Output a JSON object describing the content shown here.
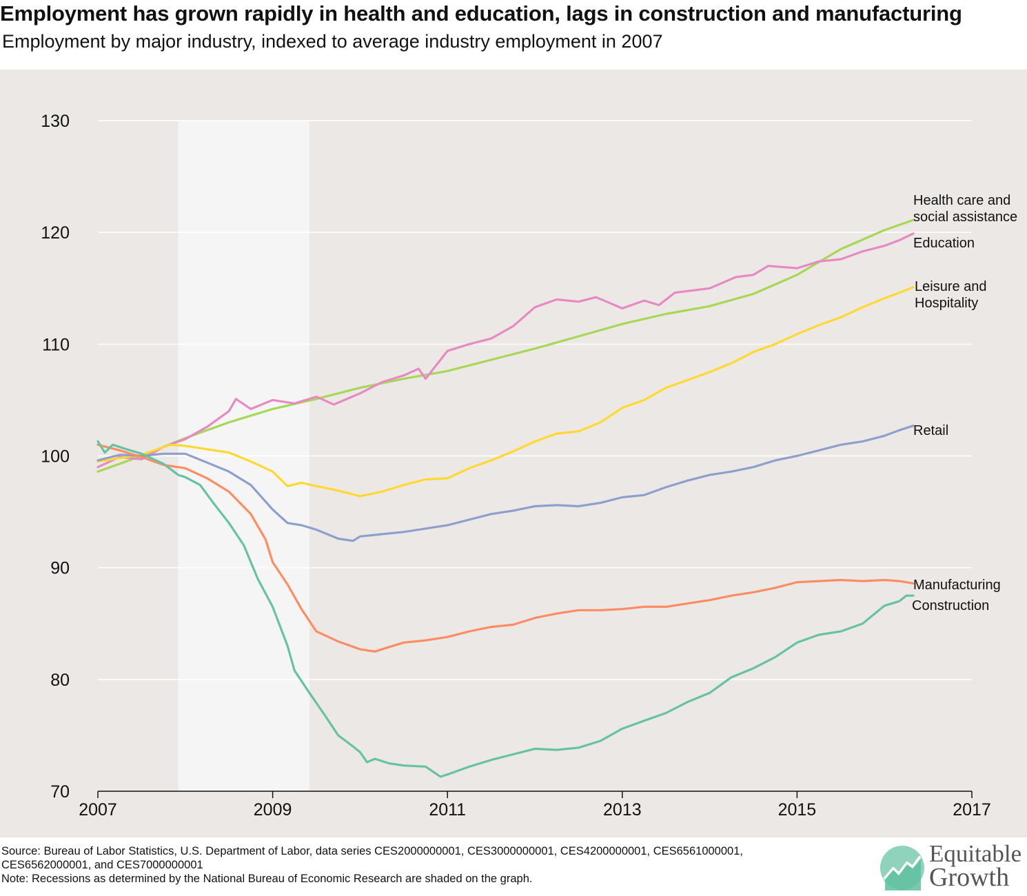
{
  "title": "Employment has grown rapidly in health and education, lags in construction and manufacturing",
  "subtitle": "Employment by major industry, indexed to average industry employment in 2007",
  "footer": {
    "source": "Source: Bureau of Labor Statistics, U.S. Department of Labor, data series CES2000000001, CES3000000001, CES4200000001, CES6561000001, CES6562000001, and CES7000000001",
    "note": "Note: Recessions as determined by the National Bureau of Economic Research are shaded on the graph."
  },
  "logo": {
    "line1": "Equitable",
    "line2": "Growth"
  },
  "colors": {
    "background": "#ece8e6",
    "recession": "#f5f5f5",
    "grid": "#ffffff",
    "health": "#a6d854",
    "education": "#e78ac3",
    "leisure": "#ffd92f",
    "retail": "#8da0cb",
    "manufacturing": "#fc8d62",
    "construction": "#66c2a5"
  },
  "chart_data": {
    "type": "line",
    "title": "Employment has grown rapidly in health and education, lags in construction and manufacturing",
    "subtitle": "Employment by major industry, indexed to average industry employment in 2007",
    "xlabel": "",
    "ylabel": "",
    "xlim": [
      2007,
      2017
    ],
    "ylim": [
      70,
      130
    ],
    "xticks": [
      "2007",
      "2009",
      "2011",
      "2013",
      "2015",
      "2017"
    ],
    "yticks": [
      "70",
      "80",
      "90",
      "100",
      "110",
      "120",
      "130"
    ],
    "grid": "horizontal",
    "legend": "labels at line ends",
    "recession": [
      2007.92,
      2009.42
    ],
    "series": [
      {
        "name": "Health care and\nsocial assistance",
        "color": "#a6d854",
        "points": [
          [
            2007.0,
            98.6
          ],
          [
            2007.5,
            100.0
          ],
          [
            2008.0,
            101.6
          ],
          [
            2008.5,
            103.0
          ],
          [
            2009.0,
            104.2
          ],
          [
            2009.5,
            105.1
          ],
          [
            2010.0,
            106.1
          ],
          [
            2010.5,
            106.9
          ],
          [
            2011.0,
            107.6
          ],
          [
            2011.5,
            108.6
          ],
          [
            2012.0,
            109.6
          ],
          [
            2012.5,
            110.7
          ],
          [
            2013.0,
            111.8
          ],
          [
            2013.5,
            112.7
          ],
          [
            2014.0,
            113.4
          ],
          [
            2014.5,
            114.5
          ],
          [
            2015.0,
            116.2
          ],
          [
            2015.5,
            118.5
          ],
          [
            2016.0,
            120.2
          ],
          [
            2016.33,
            121.1
          ]
        ]
      },
      {
        "name": "Education",
        "color": "#e78ac3",
        "points": [
          [
            2007.0,
            99.0
          ],
          [
            2007.25,
            99.9
          ],
          [
            2007.5,
            99.7
          ],
          [
            2007.75,
            100.8
          ],
          [
            2008.0,
            101.5
          ],
          [
            2008.25,
            102.6
          ],
          [
            2008.5,
            104.0
          ],
          [
            2008.58,
            105.1
          ],
          [
            2008.75,
            104.2
          ],
          [
            2009.0,
            105.0
          ],
          [
            2009.25,
            104.7
          ],
          [
            2009.5,
            105.3
          ],
          [
            2009.7,
            104.6
          ],
          [
            2010.0,
            105.6
          ],
          [
            2010.25,
            106.6
          ],
          [
            2010.5,
            107.2
          ],
          [
            2010.67,
            107.8
          ],
          [
            2010.75,
            106.9
          ],
          [
            2011.0,
            109.4
          ],
          [
            2011.25,
            110.0
          ],
          [
            2011.5,
            110.5
          ],
          [
            2011.75,
            111.6
          ],
          [
            2012.0,
            113.3
          ],
          [
            2012.25,
            114.0
          ],
          [
            2012.5,
            113.8
          ],
          [
            2012.7,
            114.2
          ],
          [
            2013.0,
            113.2
          ],
          [
            2013.25,
            113.9
          ],
          [
            2013.42,
            113.5
          ],
          [
            2013.6,
            114.6
          ],
          [
            2014.0,
            115.0
          ],
          [
            2014.3,
            116.0
          ],
          [
            2014.5,
            116.2
          ],
          [
            2014.67,
            117.0
          ],
          [
            2015.0,
            116.8
          ],
          [
            2015.25,
            117.4
          ],
          [
            2015.5,
            117.6
          ],
          [
            2015.75,
            118.3
          ],
          [
            2016.0,
            118.8
          ],
          [
            2016.17,
            119.3
          ],
          [
            2016.33,
            119.9
          ]
        ]
      },
      {
        "name": "Leisure and\nHospitality",
        "color": "#ffd92f",
        "points": [
          [
            2007.0,
            99.5
          ],
          [
            2007.5,
            100.1
          ],
          [
            2007.83,
            101.0
          ],
          [
            2008.0,
            100.9
          ],
          [
            2008.25,
            100.6
          ],
          [
            2008.5,
            100.3
          ],
          [
            2008.75,
            99.5
          ],
          [
            2009.0,
            98.6
          ],
          [
            2009.17,
            97.3
          ],
          [
            2009.33,
            97.6
          ],
          [
            2009.5,
            97.3
          ],
          [
            2009.75,
            96.9
          ],
          [
            2010.0,
            96.4
          ],
          [
            2010.25,
            96.8
          ],
          [
            2010.5,
            97.4
          ],
          [
            2010.75,
            97.9
          ],
          [
            2011.0,
            98.0
          ],
          [
            2011.25,
            98.9
          ],
          [
            2011.5,
            99.6
          ],
          [
            2011.75,
            100.4
          ],
          [
            2012.0,
            101.3
          ],
          [
            2012.25,
            102.0
          ],
          [
            2012.5,
            102.2
          ],
          [
            2012.75,
            103.0
          ],
          [
            2013.0,
            104.3
          ],
          [
            2013.25,
            105.0
          ],
          [
            2013.5,
            106.1
          ],
          [
            2013.75,
            106.8
          ],
          [
            2014.0,
            107.5
          ],
          [
            2014.25,
            108.3
          ],
          [
            2014.5,
            109.3
          ],
          [
            2014.75,
            110.0
          ],
          [
            2015.0,
            110.9
          ],
          [
            2015.25,
            111.7
          ],
          [
            2015.5,
            112.4
          ],
          [
            2015.75,
            113.3
          ],
          [
            2016.0,
            114.1
          ],
          [
            2016.17,
            114.6
          ],
          [
            2016.33,
            115.1
          ]
        ]
      },
      {
        "name": "Retail",
        "color": "#8da0cb",
        "points": [
          [
            2007.0,
            99.6
          ],
          [
            2007.25,
            100.1
          ],
          [
            2007.5,
            100.0
          ],
          [
            2007.75,
            100.2
          ],
          [
            2008.0,
            100.2
          ],
          [
            2008.25,
            99.4
          ],
          [
            2008.5,
            98.6
          ],
          [
            2008.75,
            97.4
          ],
          [
            2009.0,
            95.2
          ],
          [
            2009.17,
            94.0
          ],
          [
            2009.33,
            93.8
          ],
          [
            2009.5,
            93.4
          ],
          [
            2009.75,
            92.6
          ],
          [
            2009.92,
            92.4
          ],
          [
            2010.0,
            92.8
          ],
          [
            2010.25,
            93.0
          ],
          [
            2010.5,
            93.2
          ],
          [
            2010.75,
            93.5
          ],
          [
            2011.0,
            93.8
          ],
          [
            2011.25,
            94.3
          ],
          [
            2011.5,
            94.8
          ],
          [
            2011.75,
            95.1
          ],
          [
            2012.0,
            95.5
          ],
          [
            2012.25,
            95.6
          ],
          [
            2012.5,
            95.5
          ],
          [
            2012.75,
            95.8
          ],
          [
            2013.0,
            96.3
          ],
          [
            2013.25,
            96.5
          ],
          [
            2013.5,
            97.2
          ],
          [
            2013.75,
            97.8
          ],
          [
            2014.0,
            98.3
          ],
          [
            2014.25,
            98.6
          ],
          [
            2014.5,
            99.0
          ],
          [
            2014.75,
            99.6
          ],
          [
            2015.0,
            100.0
          ],
          [
            2015.25,
            100.5
          ],
          [
            2015.5,
            101.0
          ],
          [
            2015.75,
            101.3
          ],
          [
            2016.0,
            101.8
          ],
          [
            2016.17,
            102.3
          ],
          [
            2016.33,
            102.7
          ]
        ]
      },
      {
        "name": "Manufacturing",
        "color": "#fc8d62",
        "points": [
          [
            2007.0,
            101.0
          ],
          [
            2007.25,
            100.5
          ],
          [
            2007.5,
            99.9
          ],
          [
            2007.75,
            99.2
          ],
          [
            2008.0,
            98.9
          ],
          [
            2008.25,
            98.0
          ],
          [
            2008.5,
            96.8
          ],
          [
            2008.75,
            94.8
          ],
          [
            2008.92,
            92.5
          ],
          [
            2009.0,
            90.5
          ],
          [
            2009.17,
            88.5
          ],
          [
            2009.33,
            86.3
          ],
          [
            2009.5,
            84.3
          ],
          [
            2009.75,
            83.4
          ],
          [
            2010.0,
            82.7
          ],
          [
            2010.17,
            82.5
          ],
          [
            2010.33,
            82.9
          ],
          [
            2010.5,
            83.3
          ],
          [
            2010.75,
            83.5
          ],
          [
            2011.0,
            83.8
          ],
          [
            2011.25,
            84.3
          ],
          [
            2011.5,
            84.7
          ],
          [
            2011.75,
            84.9
          ],
          [
            2012.0,
            85.5
          ],
          [
            2012.25,
            85.9
          ],
          [
            2012.5,
            86.2
          ],
          [
            2012.75,
            86.2
          ],
          [
            2013.0,
            86.3
          ],
          [
            2013.25,
            86.5
          ],
          [
            2013.5,
            86.5
          ],
          [
            2013.75,
            86.8
          ],
          [
            2014.0,
            87.1
          ],
          [
            2014.25,
            87.5
          ],
          [
            2014.5,
            87.8
          ],
          [
            2014.75,
            88.2
          ],
          [
            2015.0,
            88.7
          ],
          [
            2015.25,
            88.8
          ],
          [
            2015.5,
            88.9
          ],
          [
            2015.75,
            88.8
          ],
          [
            2016.0,
            88.9
          ],
          [
            2016.17,
            88.8
          ],
          [
            2016.33,
            88.6
          ]
        ]
      },
      {
        "name": "Construction",
        "color": "#66c2a5",
        "points": [
          [
            2007.0,
            101.3
          ],
          [
            2007.08,
            100.3
          ],
          [
            2007.17,
            101.0
          ],
          [
            2007.33,
            100.6
          ],
          [
            2007.5,
            100.2
          ],
          [
            2007.75,
            99.3
          ],
          [
            2007.92,
            98.3
          ],
          [
            2008.0,
            98.1
          ],
          [
            2008.17,
            97.4
          ],
          [
            2008.33,
            95.7
          ],
          [
            2008.5,
            94.0
          ],
          [
            2008.67,
            92.0
          ],
          [
            2008.83,
            89.0
          ],
          [
            2009.0,
            86.5
          ],
          [
            2009.17,
            83.0
          ],
          [
            2009.25,
            80.8
          ],
          [
            2009.42,
            78.8
          ],
          [
            2009.58,
            77.0
          ],
          [
            2009.75,
            75.0
          ],
          [
            2009.92,
            74.0
          ],
          [
            2010.0,
            73.5
          ],
          [
            2010.08,
            72.6
          ],
          [
            2010.17,
            72.9
          ],
          [
            2010.33,
            72.5
          ],
          [
            2010.5,
            72.3
          ],
          [
            2010.75,
            72.2
          ],
          [
            2010.92,
            71.3
          ],
          [
            2011.0,
            71.5
          ],
          [
            2011.25,
            72.2
          ],
          [
            2011.5,
            72.8
          ],
          [
            2011.75,
            73.3
          ],
          [
            2012.0,
            73.8
          ],
          [
            2012.25,
            73.7
          ],
          [
            2012.5,
            73.9
          ],
          [
            2012.75,
            74.5
          ],
          [
            2013.0,
            75.6
          ],
          [
            2013.25,
            76.3
          ],
          [
            2013.5,
            77.0
          ],
          [
            2013.75,
            78.0
          ],
          [
            2014.0,
            78.8
          ],
          [
            2014.25,
            80.2
          ],
          [
            2014.5,
            81.0
          ],
          [
            2014.75,
            82.0
          ],
          [
            2015.0,
            83.3
          ],
          [
            2015.25,
            84.0
          ],
          [
            2015.5,
            84.3
          ],
          [
            2015.75,
            85.0
          ],
          [
            2016.0,
            86.6
          ],
          [
            2016.17,
            87.0
          ],
          [
            2016.25,
            87.5
          ],
          [
            2016.33,
            87.5
          ]
        ]
      }
    ]
  }
}
